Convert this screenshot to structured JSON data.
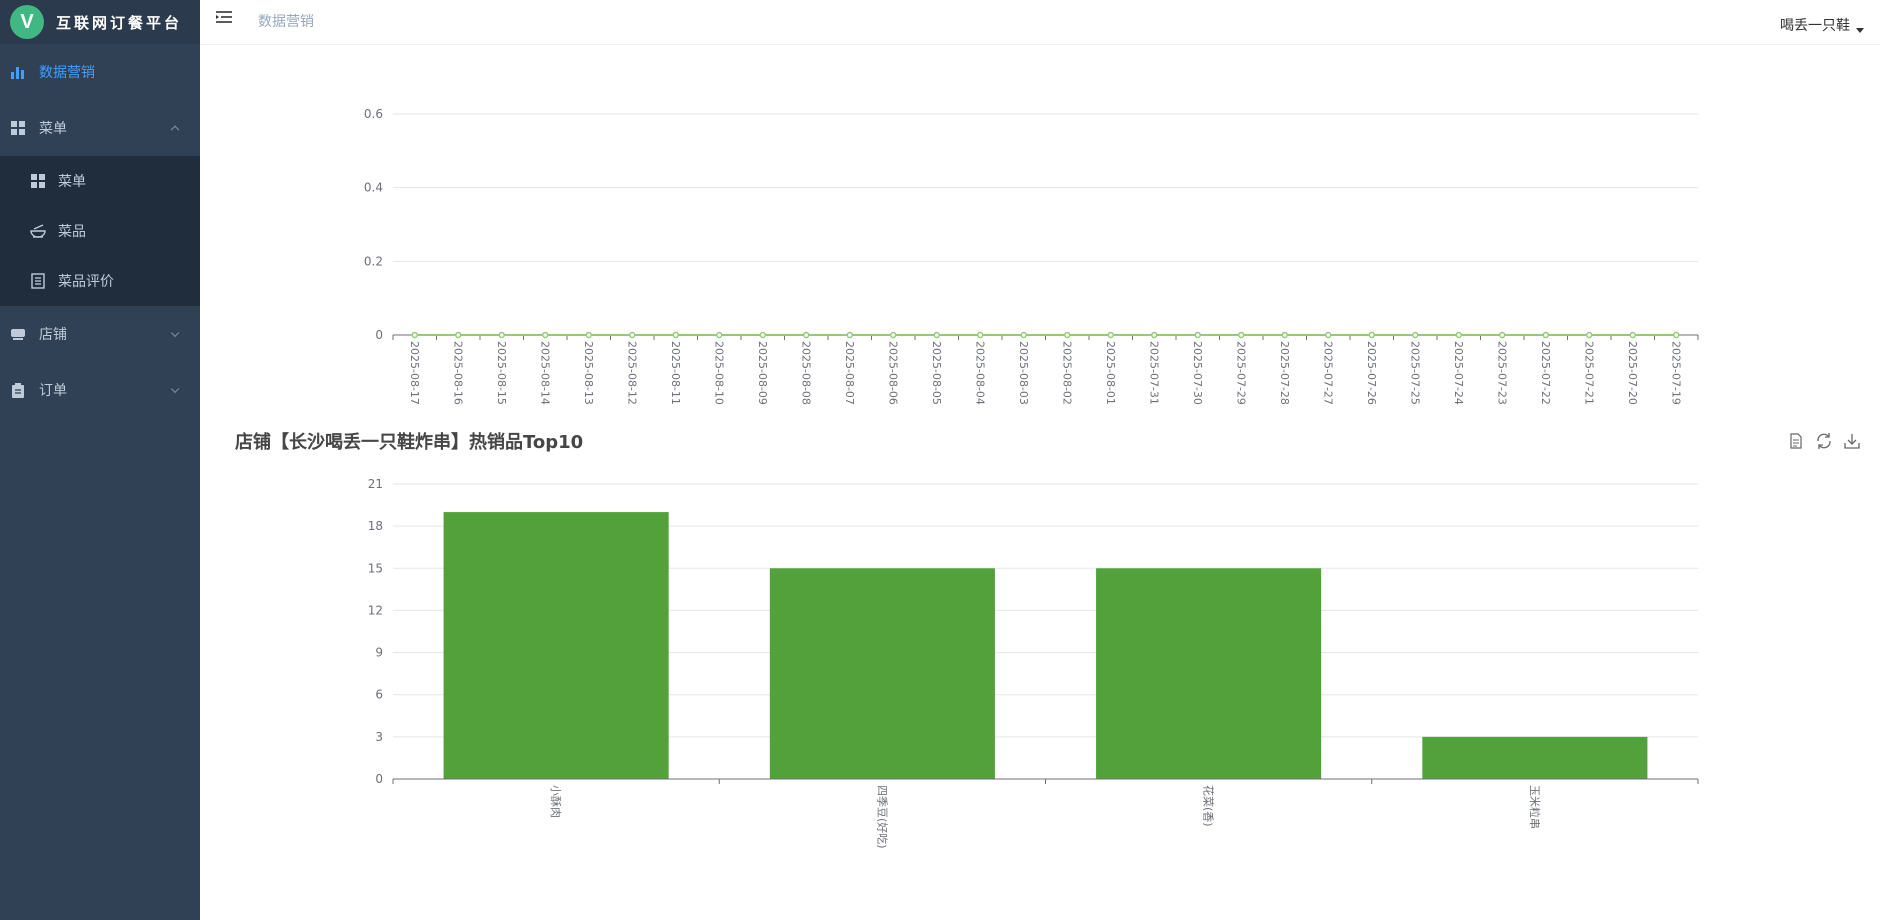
{
  "app": {
    "title": "互联网订餐平台",
    "logo_letter": "V"
  },
  "navbar": {
    "breadcrumb": "数据营销",
    "user_name": "喝丢一只鞋"
  },
  "sidebar": {
    "items": [
      {
        "label": "数据营销",
        "icon": "bar-chart-icon",
        "active": true
      },
      {
        "label": "菜单",
        "icon": "grid-icon",
        "expanded": true,
        "children": [
          {
            "label": "菜单",
            "icon": "grid-icon"
          },
          {
            "label": "菜品",
            "icon": "bowl-icon"
          },
          {
            "label": "菜品评价",
            "icon": "document-list-icon"
          }
        ]
      },
      {
        "label": "店铺",
        "icon": "store-icon",
        "expanded": false
      },
      {
        "label": "订单",
        "icon": "clipboard-icon",
        "expanded": false
      }
    ]
  },
  "chart_data": [
    {
      "type": "line",
      "title": "",
      "x": [
        "2025-08-17",
        "2025-08-16",
        "2025-08-15",
        "2025-08-14",
        "2025-08-13",
        "2025-08-12",
        "2025-08-11",
        "2025-08-10",
        "2025-08-09",
        "2025-08-08",
        "2025-08-07",
        "2025-08-06",
        "2025-08-05",
        "2025-08-04",
        "2025-08-03",
        "2025-08-02",
        "2025-08-01",
        "2025-07-31",
        "2025-07-30",
        "2025-07-29",
        "2025-07-28",
        "2025-07-27",
        "2025-07-26",
        "2025-07-25",
        "2025-07-24",
        "2025-07-23",
        "2025-07-22",
        "2025-07-21",
        "2025-07-20",
        "2025-07-19"
      ],
      "series": [
        {
          "values": [
            0,
            0,
            0,
            0,
            0,
            0,
            0,
            0,
            0,
            0,
            0,
            0,
            0,
            0,
            0,
            0,
            0,
            0,
            0,
            0,
            0,
            0,
            0,
            0,
            0,
            0,
            0,
            0,
            0,
            0
          ]
        }
      ],
      "ylim": [
        0,
        0.6
      ],
      "yticks": [
        "0",
        "0.2",
        "0.4",
        "0.6"
      ],
      "grid": true,
      "color": "#91cc75"
    },
    {
      "type": "bar",
      "title": "店铺【长沙喝丢一只鞋炸串】热销品Top10",
      "categories": [
        "小酥肉",
        "四季豆(好吃)",
        "花菜(香)",
        "玉米粒串"
      ],
      "values": [
        19,
        15,
        15,
        3
      ],
      "ylim": [
        0,
        21
      ],
      "yticks": [
        "0",
        "3",
        "6",
        "9",
        "12",
        "15",
        "18",
        "21"
      ],
      "grid": true,
      "color": "#53a13b",
      "toolbox": [
        "data-view-icon",
        "restore-icon",
        "save-image-icon"
      ]
    }
  ]
}
